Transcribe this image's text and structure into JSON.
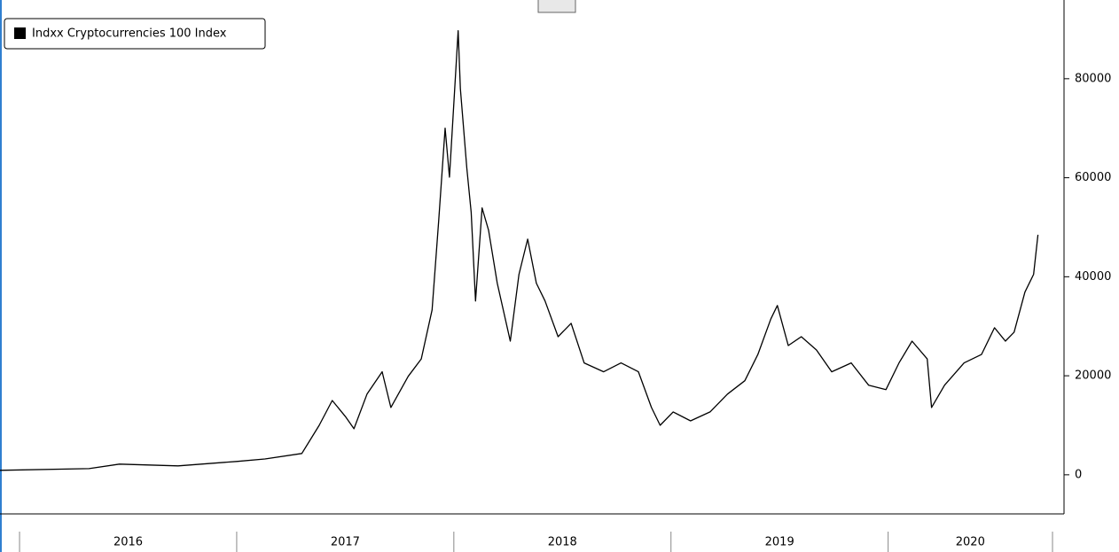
{
  "chart_data": {
    "type": "line",
    "series": [
      {
        "name": "Indxx Cryptocurrencies 100 Index",
        "color": "#000000",
        "x": [
          2015.91,
          2016.32,
          2016.46,
          2016.73,
          2017.0,
          2017.13,
          2017.3,
          2017.38,
          2017.44,
          2017.5,
          2017.54,
          2017.6,
          2017.67,
          2017.71,
          2017.79,
          2017.85,
          2017.9,
          2017.93,
          2017.96,
          2017.98,
          2018.02,
          2018.03,
          2018.06,
          2018.08,
          2018.1,
          2018.13,
          2018.16,
          2018.2,
          2018.26,
          2018.3,
          2018.34,
          2018.38,
          2018.42,
          2018.48,
          2018.54,
          2018.6,
          2018.69,
          2018.77,
          2018.85,
          2018.91,
          2018.95,
          2019.01,
          2019.09,
          2019.18,
          2019.26,
          2019.34,
          2019.4,
          2019.46,
          2019.49,
          2019.54,
          2019.6,
          2019.67,
          2019.74,
          2019.83,
          2019.91,
          2019.99,
          2020.05,
          2020.11,
          2020.18,
          2020.2,
          2020.26,
          2020.35,
          2020.43,
          2020.49,
          2020.54,
          2020.58,
          2020.63,
          2020.67,
          2020.69
        ],
        "values": [
          900,
          1250,
          2150,
          1800,
          2700,
          3200,
          4300,
          10000,
          15000,
          11800,
          9300,
          16300,
          20800,
          13600,
          19900,
          23400,
          33300,
          51200,
          70000,
          60100,
          89700,
          78000,
          61900,
          53000,
          35100,
          53900,
          49400,
          38700,
          27000,
          40500,
          47600,
          38700,
          35100,
          27900,
          30600,
          22600,
          20800,
          22600,
          20800,
          13600,
          10000,
          12700,
          10900,
          12700,
          16300,
          19000,
          24300,
          31500,
          34200,
          26100,
          27900,
          25200,
          20800,
          22600,
          18100,
          17200,
          22600,
          27000,
          23400,
          13600,
          18100,
          22600,
          24300,
          29700,
          27000,
          28800,
          36900,
          40500,
          48500
        ]
      }
    ],
    "xlim": [
      2015.91,
      2020.81
    ],
    "xticks": [
      {
        "value": 2016,
        "label": "2016"
      },
      {
        "value": 2017,
        "label": "2017"
      },
      {
        "value": 2018,
        "label": "2018"
      },
      {
        "value": 2019,
        "label": "2019"
      },
      {
        "value": 2020,
        "label": "2020"
      }
    ],
    "ylim": [
      -7900,
      95900
    ],
    "yticks": [
      0,
      20000,
      40000,
      60000,
      80000
    ],
    "legend": "top-left"
  }
}
